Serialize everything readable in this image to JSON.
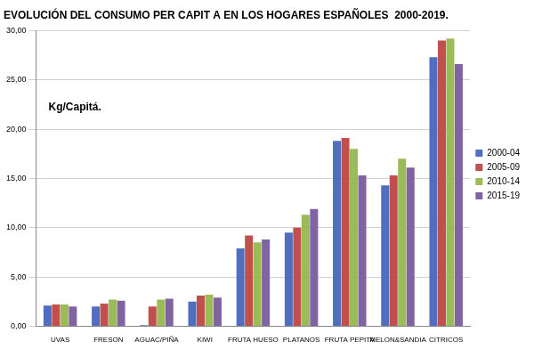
{
  "chart_data": {
    "type": "bar",
    "title": "EVOLUCIÓN DEL CONSUMO PER CAPIT A EN LOS HOGARES ESPAÑOLES  2000-2019.",
    "y_label": "Kg/Capitá.",
    "categories": [
      "UVAS",
      "FRESON",
      "AGUAC/PIÑA",
      "KIWI",
      "FRUTA HUESO",
      "PLATANOS",
      "FRUTA PEPITA",
      "MELON&SANDIA",
      "CITRICOS"
    ],
    "series": [
      {
        "name": "2000-04",
        "color": "#4F6EC0",
        "values": [
          2.1,
          2.0,
          0.1,
          2.5,
          7.9,
          9.5,
          18.8,
          14.3,
          27.3
        ]
      },
      {
        "name": "2005-09",
        "color": "#C0504D",
        "values": [
          2.2,
          2.3,
          2.0,
          3.1,
          9.2,
          10.0,
          19.1,
          15.3,
          29.0
        ]
      },
      {
        "name": "2010-14",
        "color": "#9BBB59",
        "values": [
          2.2,
          2.7,
          2.7,
          3.2,
          8.5,
          11.3,
          18.0,
          17.0,
          29.2
        ]
      },
      {
        "name": "2015-19",
        "color": "#8064A2",
        "values": [
          2.0,
          2.6,
          2.8,
          2.9,
          8.8,
          11.9,
          15.3,
          16.1,
          26.6
        ]
      }
    ],
    "ylim": [
      0,
      30
    ],
    "yticks": [
      {
        "value": 0,
        "label": "0,00"
      },
      {
        "value": 5,
        "label": "5,00"
      },
      {
        "value": 10,
        "label": "10,00"
      },
      {
        "value": 15,
        "label": "15,00"
      },
      {
        "value": 20,
        "label": "20,00"
      },
      {
        "value": 25,
        "label": "25,00"
      },
      {
        "value": 30,
        "label": "30,00"
      }
    ],
    "grid": true,
    "legend": "right"
  }
}
